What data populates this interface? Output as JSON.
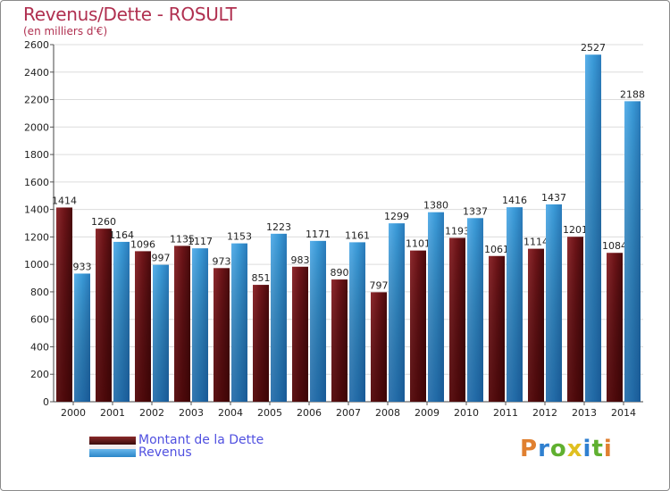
{
  "title": "Revenus/Dette - ROSULT",
  "subtitle": "(en milliers d'€)",
  "legend": {
    "dette": "Montant de la Dette",
    "revenus": "Revenus"
  },
  "logo_text": "Proxiti",
  "colors": {
    "dette": "#6e1418",
    "revenus": "#3a9ad8",
    "title": "#b03050",
    "legend_text": "#5050e0"
  },
  "chart_data": {
    "type": "bar",
    "categories": [
      "2000",
      "2001",
      "2002",
      "2003",
      "2004",
      "2005",
      "2006",
      "2007",
      "2008",
      "2009",
      "2010",
      "2011",
      "2012",
      "2013",
      "2014"
    ],
    "series": [
      {
        "name": "Montant de la Dette",
        "values": [
          1414,
          1260,
          1096,
          1135,
          973,
          851,
          983,
          890,
          797,
          1101,
          1193,
          1061,
          1114,
          1201,
          1084
        ]
      },
      {
        "name": "Revenus",
        "values": [
          933,
          1164,
          997,
          1117,
          1153,
          1223,
          1171,
          1161,
          1299,
          1380,
          1337,
          1416,
          1437,
          2527,
          2188
        ]
      }
    ],
    "value_labels": {
      "dette": [
        "1414",
        "1260",
        "1096",
        "1135",
        "973",
        "851",
        "983",
        "890",
        "797",
        "1101",
        "1193",
        "1061",
        "1114",
        "1201",
        "1084"
      ],
      "revenus": [
        "933",
        "1164",
        "997",
        "1117",
        "1153",
        "1223",
        "1171",
        "1161",
        "1299",
        "1380",
        "1337",
        "1416",
        "1437",
        "2527",
        "2188"
      ]
    },
    "yticks": [
      0,
      200,
      400,
      600,
      800,
      1000,
      1200,
      1400,
      1600,
      1800,
      2000,
      2200,
      2400,
      2600
    ],
    "ylim": [
      0,
      2600
    ],
    "grid": true
  }
}
